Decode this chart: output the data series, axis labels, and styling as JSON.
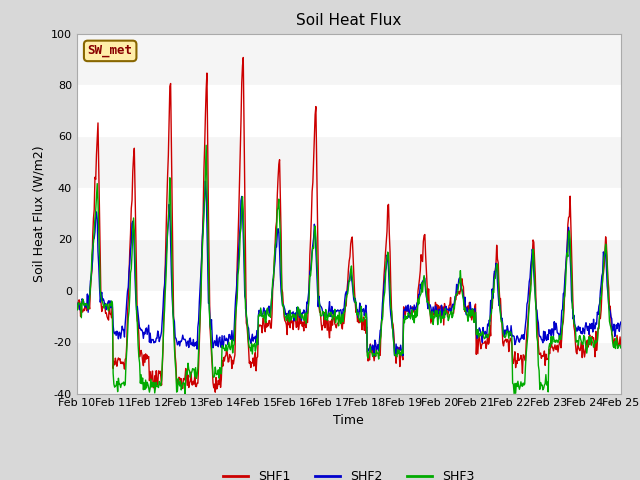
{
  "title": "Soil Heat Flux",
  "xlabel": "Time",
  "ylabel": "Soil Heat Flux (W/m2)",
  "ylim": [
    -40,
    100
  ],
  "xlim_days": [
    10,
    25
  ],
  "x_tick_labels": [
    "Feb 10",
    "Feb 11",
    "Feb 12",
    "Feb 13",
    "Feb 14",
    "Feb 15",
    "Feb 16",
    "Feb 17",
    "Feb 18",
    "Feb 19",
    "Feb 20",
    "Feb 21",
    "Feb 22",
    "Feb 23",
    "Feb 24",
    "Feb 25"
  ],
  "x_tick_positions": [
    10,
    11,
    12,
    13,
    14,
    15,
    16,
    17,
    18,
    19,
    20,
    21,
    22,
    23,
    24,
    25
  ],
  "ytick_labels": [
    "-40",
    "-20",
    "0",
    "20",
    "40",
    "60",
    "80",
    "100"
  ],
  "ytick_positions": [
    -40,
    -20,
    0,
    20,
    40,
    60,
    80,
    100
  ],
  "colors": {
    "SHF1": "#cc0000",
    "SHF2": "#0000cc",
    "SHF3": "#00aa00"
  },
  "legend_label": "SW_met",
  "legend_box_facecolor": "#ffeeaa",
  "legend_box_edgecolor": "#886600",
  "fig_facecolor": "#d8d8d8",
  "plot_facecolor": "#ffffff",
  "band_color_dark": "#d8d8d8",
  "band_color_light": "#f5f5f5",
  "grid_color": "#ffffff",
  "linewidth": 1.0,
  "title_fontsize": 11,
  "tick_fontsize": 8,
  "ylabel_fontsize": 9,
  "xlabel_fontsize": 9
}
